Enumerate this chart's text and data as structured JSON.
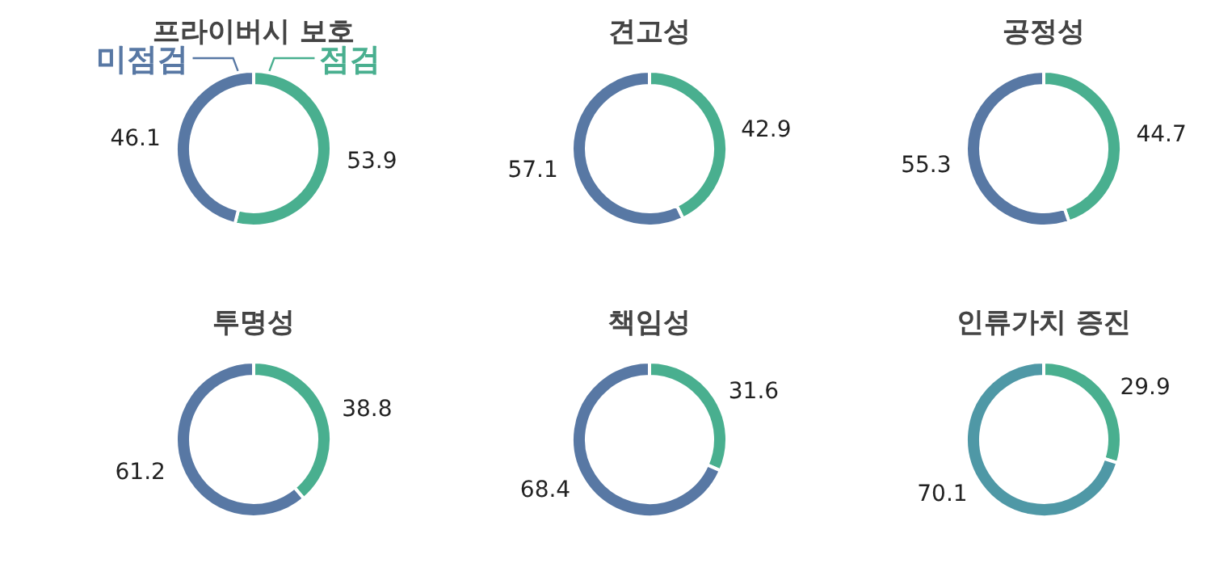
{
  "chart_data": [
    {
      "type": "donut",
      "title": "프라이버시 보호",
      "categories": [
        "점검",
        "미점검"
      ],
      "values": [
        53.9,
        46.1
      ],
      "colors": [
        "#49af8f",
        "#5878a4"
      ],
      "data_labels": true
    },
    {
      "type": "donut",
      "title": "견고성",
      "categories": [
        null,
        null
      ],
      "values": [
        42.9,
        57.1
      ],
      "colors": [
        "#49af8f",
        "#5878a4"
      ],
      "data_labels": true
    },
    {
      "type": "donut",
      "title": "공정성",
      "categories": [
        null,
        null
      ],
      "values": [
        44.7,
        55.3
      ],
      "colors": [
        "#49af8f",
        "#5878a4"
      ],
      "data_labels": true
    },
    {
      "type": "donut",
      "title": "투명성",
      "categories": [
        null,
        null
      ],
      "values": [
        38.8,
        61.2
      ],
      "colors": [
        "#49af8f",
        "#5878a4"
      ],
      "data_labels": true
    },
    {
      "type": "donut",
      "title": "책임성",
      "categories": [
        null,
        null
      ],
      "values": [
        31.6,
        68.4
      ],
      "colors": [
        "#49af8f",
        "#5878a4"
      ],
      "data_labels": true
    },
    {
      "type": "donut",
      "title": "인류가치 증진",
      "categories": [
        null,
        null
      ],
      "values": [
        29.9,
        70.1
      ],
      "colors": [
        "#49af8f",
        "#4f98a6"
      ],
      "data_labels": true
    }
  ]
}
